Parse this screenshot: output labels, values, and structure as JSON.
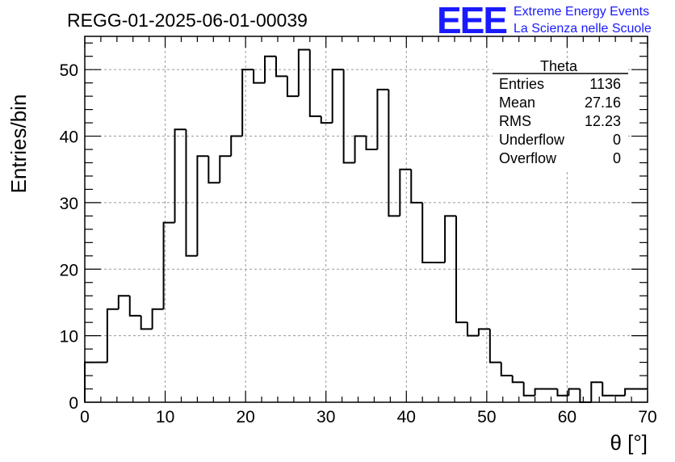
{
  "logo": {
    "mark": "EEE",
    "line1": "Extreme Energy Events",
    "line2": "La Scienza nelle Scuole",
    "color": "#1a1aff"
  },
  "chart_data": {
    "type": "bar",
    "histogram": true,
    "title": "REGG-01-2025-06-01-00039",
    "xlabel": "θ [°]",
    "ylabel": "Entries/bin",
    "xlim": [
      0,
      70
    ],
    "ylim": [
      0,
      55
    ],
    "bin_width": 1.4,
    "xticks": [
      0,
      10,
      20,
      30,
      40,
      50,
      60,
      70
    ],
    "yticks": [
      0,
      10,
      20,
      30,
      40,
      50
    ],
    "grid": true,
    "values": [
      6,
      6,
      14,
      16,
      13,
      11,
      14,
      27,
      41,
      22,
      37,
      33,
      37,
      40,
      50,
      48,
      52,
      49,
      46,
      53,
      43,
      42,
      50,
      36,
      40,
      38,
      47,
      28,
      35,
      30,
      21,
      21,
      28,
      12,
      10,
      11,
      6,
      4,
      3,
      1,
      2,
      2,
      1,
      2,
      0,
      3,
      1,
      1,
      2,
      2
    ],
    "stats": {
      "title": "Theta",
      "rows": [
        {
          "label": "Entries",
          "value": "1136"
        },
        {
          "label": "Mean",
          "value": "27.16"
        },
        {
          "label": "RMS",
          "value": "12.23"
        },
        {
          "label": "Underflow",
          "value": "0"
        },
        {
          "label": "Overflow",
          "value": "0"
        }
      ],
      "placement": "top-right"
    }
  }
}
